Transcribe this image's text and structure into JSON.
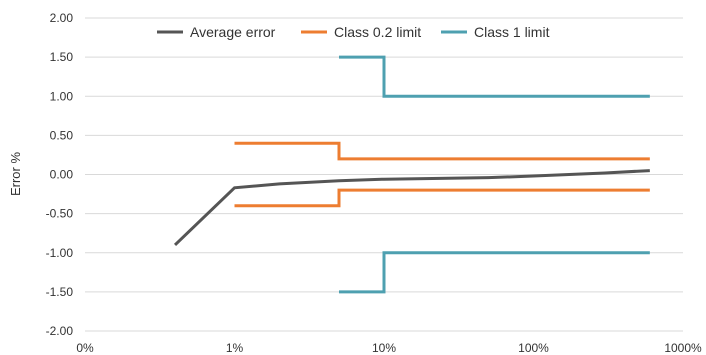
{
  "chart_data": {
    "type": "line",
    "title": "",
    "xlabel": "",
    "ylabel": "Error %",
    "x_scale": "log",
    "x_ticks": [
      0.1,
      1,
      10,
      100,
      1000
    ],
    "x_tick_labels": [
      "0%",
      "1%",
      "10%",
      "100%",
      "1000%"
    ],
    "ylim": [
      -2.0,
      2.0
    ],
    "y_ticks": [
      -2.0,
      -1.5,
      -1.0,
      -0.5,
      0.0,
      0.5,
      1.0,
      1.5,
      2.0
    ],
    "y_tick_labels": [
      "-2.00",
      "-1.50",
      "-1.00",
      "-0.50",
      "0.00",
      "0.50",
      "1.00",
      "1.50",
      "2.00"
    ],
    "grid": "horizontal",
    "legend_position": "top",
    "series": [
      {
        "name": "Average error",
        "color": "#555555",
        "points": [
          [
            0.4,
            -0.9
          ],
          [
            1,
            -0.17
          ],
          [
            2,
            -0.12
          ],
          [
            5,
            -0.08
          ],
          [
            10,
            -0.06
          ],
          [
            50,
            -0.04
          ],
          [
            100,
            -0.02
          ],
          [
            300,
            0.02
          ],
          [
            600,
            0.05
          ]
        ]
      },
      {
        "name": "Class 0.2 limit",
        "color": "#ed7d31",
        "segments": [
          [
            [
              1,
              0.4
            ],
            [
              5,
              0.4
            ],
            [
              5,
              0.2
            ],
            [
              600,
              0.2
            ]
          ],
          [
            [
              1,
              -0.4
            ],
            [
              5,
              -0.4
            ],
            [
              5,
              -0.2
            ],
            [
              600,
              -0.2
            ]
          ]
        ]
      },
      {
        "name": "Class 1 limit",
        "color": "#4ea0b0",
        "segments": [
          [
            [
              5,
              1.5
            ],
            [
              10,
              1.5
            ],
            [
              10,
              1.0
            ],
            [
              600,
              1.0
            ]
          ],
          [
            [
              5,
              -1.5
            ],
            [
              10,
              -1.5
            ],
            [
              10,
              -1.0
            ],
            [
              600,
              -1.0
            ]
          ]
        ]
      }
    ]
  }
}
